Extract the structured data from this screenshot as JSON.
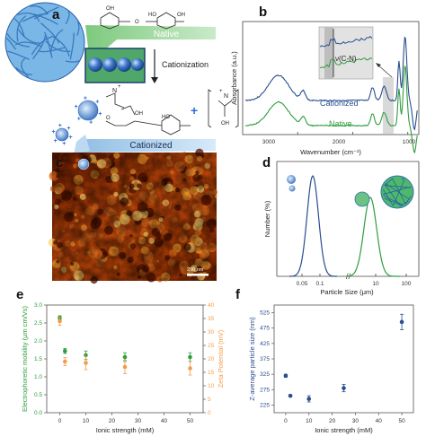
{
  "colors": {
    "green": "#2e9e3e",
    "blue": "#2a4d8f",
    "orange": "#f39c4a",
    "band": "#b8d7ee",
    "green_band": "#8fcf8f",
    "highlight": "#d9d9d9"
  },
  "panel_a": {
    "letter": "a",
    "native_label": "Native",
    "cationized_label": "Cationized",
    "arrow_label": "Cationization",
    "chem": {
      "oh": "OH",
      "ho": "HO",
      "o": "O",
      "plus": "+",
      "n": "N",
      "cl": "Cl"
    }
  },
  "panel_b": {
    "letter": "b",
    "ylabel": "Absorbance (a.u.)",
    "xlabel": "Wavenumber (cm⁻¹)",
    "x_ticks": [
      "3000",
      "2000",
      "1000"
    ],
    "inset_label": "ν(C-N)",
    "series": [
      {
        "name": "Cationized",
        "color": "#2a4d8f"
      },
      {
        "name": "Native",
        "color": "#2e9e3e"
      }
    ]
  },
  "panel_c": {
    "letter": "c",
    "scale_bar": "200 nm"
  },
  "panel_d": {
    "letter": "d",
    "ylabel": "Number (%)",
    "xlabel": "Particle Size (μm)",
    "x_ticks": [
      "0.05",
      "0.1",
      "10",
      "100"
    ]
  },
  "chart_data": [
    {
      "type": "line",
      "title": "",
      "xlabel": "Wavenumber (cm⁻¹)",
      "ylabel": "Absorbance (a.u.)",
      "xlim": [
        4000,
        800
      ],
      "series": [
        {
          "name": "Cationized",
          "x": [
            3800,
            3400,
            2900,
            2300,
            1650,
            1480,
            1100,
            1030,
            900
          ],
          "y": [
            0.55,
            0.75,
            0.62,
            0.52,
            0.58,
            0.65,
            0.95,
            1.0,
            0.6
          ]
        },
        {
          "name": "Native",
          "x": [
            3800,
            3400,
            2900,
            2300,
            1650,
            1480,
            1100,
            1030,
            900
          ],
          "y": [
            0.18,
            0.32,
            0.24,
            0.16,
            0.22,
            0.26,
            0.45,
            0.6,
            0.2
          ]
        }
      ]
    },
    {
      "type": "line",
      "xlabel": "Particle Size (μm)",
      "ylabel": "Number (%)",
      "series": [
        {
          "name": "",
          "x": [
            0.03,
            0.045,
            0.06,
            0.075,
            0.1
          ],
          "y": [
            0,
            40,
            100,
            40,
            0
          ]
        },
        {
          "name": "",
          "x": [
            3,
            5,
            8,
            12,
            20
          ],
          "y": [
            0,
            45,
            100,
            45,
            0
          ]
        }
      ]
    },
    {
      "type": "scatter",
      "xlabel": "Ionic strength (mM)",
      "ylabel": "Electrophoretic mobility (μm cm/Vs)",
      "y2label": "Zeta Potential (mV)",
      "xlim": [
        -5,
        55
      ],
      "ylim": [
        0,
        3.0
      ],
      "y2lim": [
        0,
        40
      ],
      "x_ticks": [
        0,
        10,
        20,
        30,
        40,
        50
      ],
      "y_ticks": [
        "0.0",
        "0.5",
        "1.0",
        "1.5",
        "2.0",
        "2.5",
        "3.0"
      ],
      "y2_ticks": [
        "0",
        "5",
        "10",
        "15",
        "20",
        "25",
        "30",
        "35",
        "40"
      ],
      "series": [
        {
          "name": "Electrophoretic mobility",
          "color": "#2e9e3e",
          "x": [
            0,
            2,
            10,
            25,
            50
          ],
          "y": [
            2.65,
            1.72,
            1.6,
            1.55,
            1.55
          ],
          "err": [
            0.05,
            0.07,
            0.12,
            0.12,
            0.12
          ]
        },
        {
          "name": "Zeta Potential",
          "color": "#f39c4a",
          "x": [
            0,
            2,
            10,
            25,
            50
          ],
          "y": [
            34,
            19,
            18.5,
            17,
            16.5
          ],
          "err": [
            1.5,
            1.5,
            2.5,
            2.5,
            2.5
          ]
        }
      ]
    },
    {
      "type": "scatter",
      "xlabel": "Ionic strength (mM)",
      "ylabel": "Z-average particle size (nm)",
      "xlim": [
        -5,
        55
      ],
      "ylim": [
        200,
        550
      ],
      "x_ticks": [
        0,
        10,
        20,
        30,
        40,
        50
      ],
      "y_ticks": [
        "225",
        "275",
        "325",
        "375",
        "425",
        "475",
        "525"
      ],
      "series": [
        {
          "name": "",
          "color": "#2a4d8f",
          "x": [
            0,
            2,
            10,
            25,
            50
          ],
          "y": [
            320,
            255,
            245,
            280,
            495
          ],
          "err": [
            5,
            3,
            10,
            12,
            25
          ]
        }
      ]
    }
  ],
  "panel_e": {
    "letter": "e"
  },
  "panel_f": {
    "letter": "f"
  }
}
